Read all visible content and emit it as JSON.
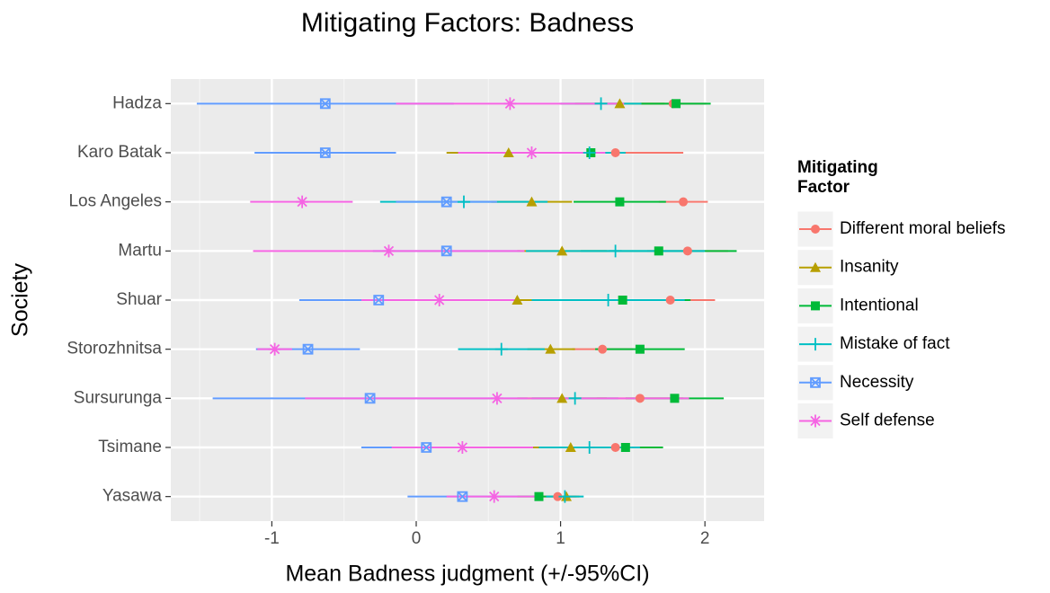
{
  "chart_data": {
    "type": "errorbar-dot",
    "title": "Mitigating Factors: Badness",
    "xlabel": "Mean Badness judgment (+/-95%CI)",
    "ylabel": "Society",
    "legend_title": "Mitigating Factor",
    "categories": [
      "Hadza",
      "Karo Batak",
      "Los Angeles",
      "Martu",
      "Shuar",
      "Storozhnitsa",
      "Sursurunga",
      "Tsimane",
      "Yasawa"
    ],
    "xlim": [
      -1.7,
      2.41
    ],
    "xticks": [
      -1,
      0,
      1,
      2
    ],
    "grid": true,
    "series": [
      {
        "name": "Different moral beliefs",
        "color": "#F8766D",
        "shape": "circle",
        "values": [
          1.78,
          1.38,
          1.85,
          1.88,
          1.76,
          1.29,
          1.55,
          1.38,
          0.98
        ],
        "lower": [
          1.55,
          0.91,
          1.68,
          1.6,
          1.45,
          1.08,
          1.25,
          1.15,
          0.85
        ],
        "upper": [
          2.01,
          1.85,
          2.02,
          2.16,
          2.07,
          1.5,
          1.85,
          1.6,
          1.11
        ]
      },
      {
        "name": "Insanity",
        "color": "#B79F00",
        "shape": "triangle",
        "values": [
          1.41,
          0.64,
          0.8,
          1.01,
          0.7,
          0.93,
          1.01,
          1.07,
          1.04
        ],
        "lower": [
          1.1,
          0.21,
          0.52,
          0.7,
          0.45,
          0.77,
          0.7,
          0.8,
          0.95
        ],
        "upper": [
          1.72,
          1.07,
          1.08,
          1.32,
          0.95,
          1.1,
          1.32,
          1.34,
          1.13
        ]
      },
      {
        "name": "Intentional",
        "color": "#00BA38",
        "shape": "square",
        "values": [
          1.8,
          1.21,
          1.41,
          1.68,
          1.43,
          1.55,
          1.79,
          1.45,
          0.85
        ],
        "lower": [
          1.56,
          1.0,
          1.09,
          1.14,
          0.96,
          1.24,
          1.45,
          1.19,
          0.7
        ],
        "upper": [
          2.04,
          1.42,
          1.73,
          2.22,
          1.9,
          1.86,
          2.13,
          1.71,
          1.0
        ]
      },
      {
        "name": "Mistake of fact",
        "color": "#00BFC4",
        "shape": "plus",
        "values": [
          1.28,
          1.2,
          0.33,
          1.38,
          1.33,
          0.59,
          1.1,
          1.2,
          1.03
        ],
        "lower": [
          1.0,
          0.95,
          -0.25,
          0.76,
          0.8,
          0.29,
          0.8,
          0.85,
          0.9
        ],
        "upper": [
          1.56,
          1.45,
          0.91,
          2.0,
          1.86,
          0.89,
          1.4,
          1.55,
          1.16
        ]
      },
      {
        "name": "Necessity",
        "color": "#619CFF",
        "shape": "square-cross",
        "values": [
          -0.63,
          -0.63,
          0.21,
          0.21,
          -0.26,
          -0.75,
          -0.32,
          0.07,
          0.32
        ],
        "lower": [
          -1.52,
          -1.12,
          -0.14,
          -0.3,
          -0.81,
          -1.11,
          -1.41,
          -0.38,
          -0.06
        ],
        "upper": [
          0.26,
          -0.14,
          0.56,
          0.72,
          0.29,
          -0.39,
          0.77,
          0.52,
          0.7
        ]
      },
      {
        "name": "Self defense",
        "color": "#F564E3",
        "shape": "asterisk",
        "values": [
          0.65,
          0.8,
          -0.79,
          -0.19,
          0.16,
          -0.98,
          0.56,
          0.32,
          0.54
        ],
        "lower": [
          -0.14,
          0.29,
          -1.15,
          -1.13,
          -0.38,
          -1.1,
          -0.77,
          -0.17,
          0.21
        ],
        "upper": [
          1.44,
          1.31,
          -0.44,
          0.75,
          0.7,
          -0.86,
          1.89,
          0.81,
          0.87
        ]
      }
    ]
  }
}
